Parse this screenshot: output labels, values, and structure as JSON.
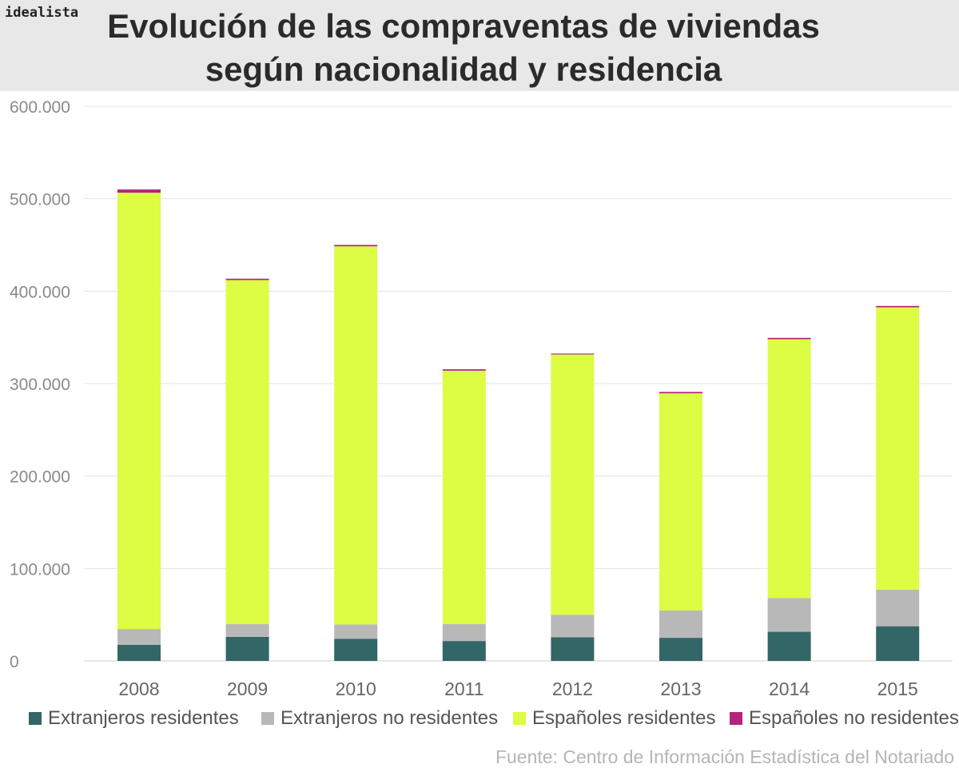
{
  "brand": "idealista",
  "title": {
    "line1": "Evolución de las compraventas de viviendas",
    "line2": "según nacionalidad y residencia"
  },
  "source": "Fuente: Centro de Información Estadística del Notariado",
  "colors": {
    "extranjeros_residentes": "#336666",
    "extranjeros_no_residentes": "#b8b8b8",
    "espanoles_residentes": "#ddfc44",
    "espanoles_no_residentes": "#b3247a"
  },
  "chart_data": {
    "type": "bar",
    "stacked": true,
    "title": "Evolución de las compraventas de viviendas según nacionalidad y residencia",
    "xlabel": "",
    "ylabel": "",
    "ylim": [
      0,
      600000
    ],
    "yticks": [
      0,
      100000,
      200000,
      300000,
      400000,
      500000,
      600000
    ],
    "ytick_labels": [
      "0",
      "100.000",
      "200.000",
      "300.000",
      "400.000",
      "500.000",
      "600.000"
    ],
    "grid": true,
    "legend_position": "bottom",
    "categories": [
      "2008",
      "2009",
      "2010",
      "2011",
      "2012",
      "2013",
      "2014",
      "2015"
    ],
    "series": [
      {
        "name": "Extranjeros residentes",
        "color": "#336666",
        "values": [
          17500,
          26000,
          24000,
          21500,
          25500,
          25000,
          31500,
          37500
        ]
      },
      {
        "name": "Extranjeros no residentes",
        "color": "#b8b8b8",
        "values": [
          17000,
          14000,
          15500,
          18500,
          24500,
          29500,
          36500,
          39500
        ]
      },
      {
        "name": "Españoles residentes",
        "color": "#ddfc44",
        "values": [
          472000,
          372000,
          409000,
          274000,
          281500,
          235000,
          280000,
          305500
        ]
      },
      {
        "name": "Españoles no residentes",
        "color": "#b3247a",
        "values": [
          3500,
          1500,
          1500,
          1500,
          1000,
          1500,
          1500,
          1500
        ]
      }
    ]
  }
}
